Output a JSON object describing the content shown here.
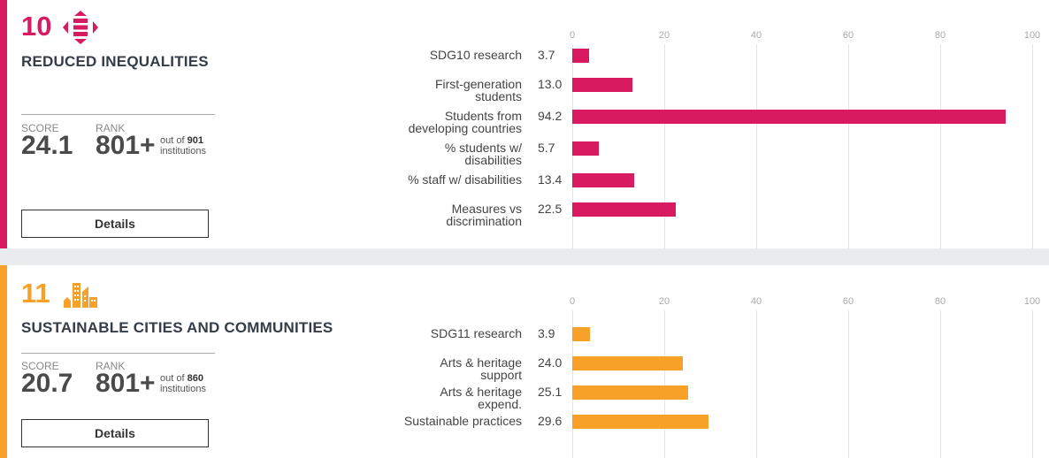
{
  "sections": [
    {
      "number": "10",
      "icon": "reduced-inequalities-icon",
      "title": "REDUCED INEQUALITIES",
      "score_label": "SCORE",
      "score": "24.1",
      "rank_label": "RANK",
      "rank": "801+",
      "out_of_prefix": "out of",
      "out_of": "901",
      "out_of_suffix": "institutions",
      "details_label": "Details",
      "color": "#d81b60"
    },
    {
      "number": "11",
      "icon": "sustainable-cities-icon",
      "title": "SUSTAINABLE CITIES AND COMMUNITIES",
      "score_label": "SCORE",
      "score": "20.7",
      "rank_label": "RANK",
      "rank": "801+",
      "out_of_prefix": "out of",
      "out_of": "860",
      "out_of_suffix": "institutions",
      "details_label": "Details",
      "color": "#f7a128"
    }
  ],
  "chart_data": [
    {
      "type": "bar",
      "orientation": "horizontal",
      "xlim": [
        0,
        100
      ],
      "ticks": [
        "0",
        "20",
        "40",
        "60",
        "80",
        "100"
      ],
      "grid": true,
      "categories": [
        "SDG10 research",
        "First-generation students",
        "Students from developing countries",
        "% students w/ disabilities",
        "% staff w/ disabilities",
        "Measures vs discrimination"
      ],
      "value_labels": [
        "3.7",
        "13.0",
        "94.2",
        "5.7",
        "13.4",
        "22.5"
      ],
      "values": [
        3.7,
        13.0,
        94.2,
        5.7,
        13.4,
        22.5
      ],
      "color": "#d81b60"
    },
    {
      "type": "bar",
      "orientation": "horizontal",
      "xlim": [
        0,
        100
      ],
      "ticks": [
        "0",
        "20",
        "40",
        "60",
        "80",
        "100"
      ],
      "grid": true,
      "categories": [
        "SDG11 research",
        "Arts & heritage support",
        "Arts & heritage expend.",
        "Sustainable practices"
      ],
      "value_labels": [
        "3.9",
        "24.0",
        "25.1",
        "29.6"
      ],
      "values": [
        3.9,
        24.0,
        25.1,
        29.6
      ],
      "color": "#f7a128"
    }
  ]
}
